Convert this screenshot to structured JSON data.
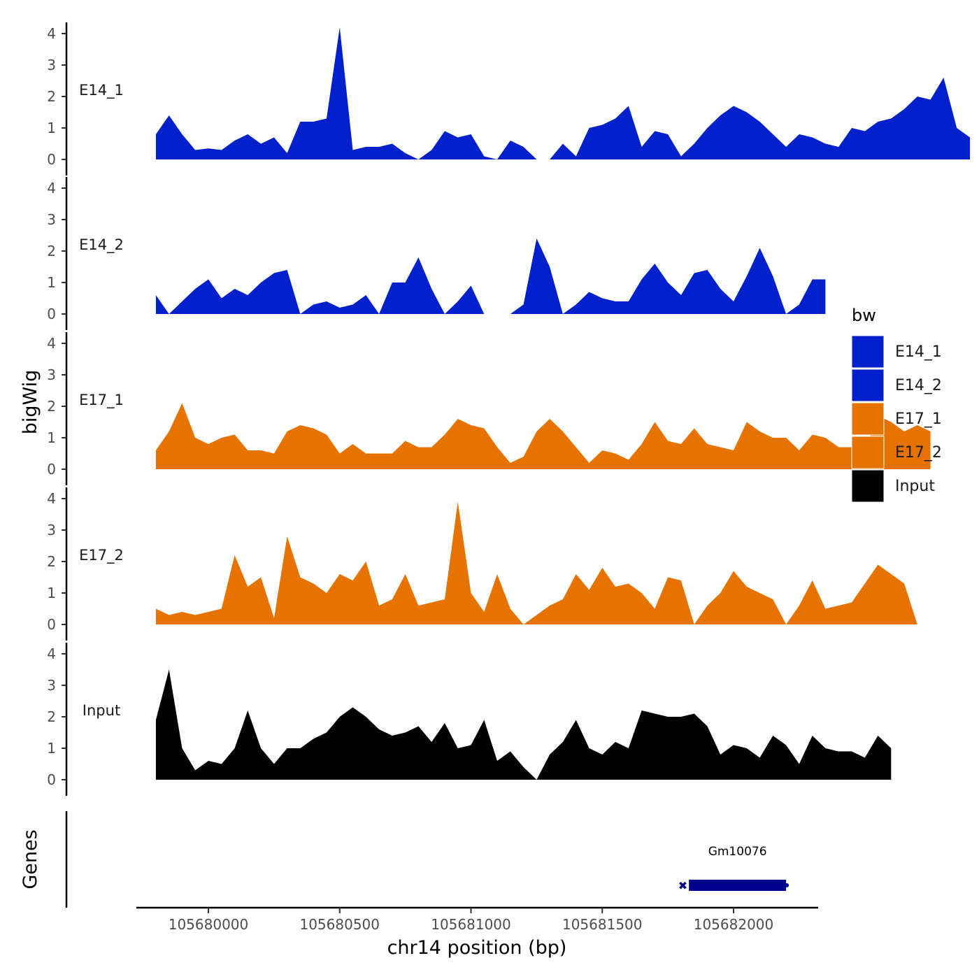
{
  "chart_data": {
    "type": "area",
    "title": "",
    "xlabel": "chr14 position (bp)",
    "ylabel": "bigWig",
    "xlim": [
      105679700,
      105682300
    ],
    "ylim": [
      0,
      4.3
    ],
    "x_ticks": [
      105680000,
      105680500,
      105681000,
      105681500,
      105682000
    ],
    "x_tick_labels": [
      "105680000",
      "105680500",
      "105681000",
      "105681500",
      "105682000"
    ],
    "y_ticks": [
      0,
      1,
      2,
      3,
      4
    ],
    "y_tick_labels": [
      "0",
      "1",
      "2",
      "3",
      "4"
    ],
    "x_start": 105679800,
    "x_step": 50,
    "legend": {
      "title": "bw",
      "position": "right",
      "entries": [
        {
          "label": "E14_1",
          "color": "#0020CC"
        },
        {
          "label": "E14_2",
          "color": "#0020CC"
        },
        {
          "label": "E17_1",
          "color": "#E67300"
        },
        {
          "label": "E17_2",
          "color": "#E67300"
        },
        {
          "label": "Input",
          "color": "#000000"
        }
      ]
    },
    "series": [
      {
        "name": "E14_1",
        "color": "#0020CC",
        "values": [
          0.8,
          1.4,
          0.8,
          0.3,
          0.35,
          0.3,
          0.6,
          0.8,
          0.5,
          0.7,
          0.2,
          1.2,
          1.2,
          1.3,
          4.2,
          0.3,
          0.4,
          0.4,
          0.5,
          0.2,
          0.0,
          0.3,
          0.9,
          0.7,
          0.8,
          0.1,
          0.0,
          0.6,
          0.4,
          0.0,
          0.0,
          0.5,
          0.1,
          1.0,
          1.1,
          1.3,
          1.7,
          0.4,
          0.9,
          0.8,
          0.1,
          0.5,
          1.0,
          1.4,
          1.7,
          1.5,
          1.2,
          0.8,
          0.4,
          0.8,
          0.7,
          0.5,
          0.4,
          1.0,
          0.9,
          1.2,
          1.3,
          1.6,
          2.0,
          1.9,
          2.6,
          1.0,
          0.7
        ]
      },
      {
        "name": "E14_2",
        "color": "#0020CC",
        "values": [
          0.6,
          0.0,
          0.4,
          0.8,
          1.1,
          0.5,
          0.8,
          0.6,
          1.0,
          1.3,
          1.4,
          0.0,
          0.3,
          0.4,
          0.2,
          0.3,
          0.6,
          0.0,
          1.0,
          1.0,
          1.8,
          0.8,
          0.0,
          0.4,
          0.9,
          0.0,
          0.0,
          0.0,
          0.3,
          2.4,
          1.5,
          0.0,
          0.3,
          0.7,
          0.5,
          0.4,
          0.4,
          1.1,
          1.6,
          1.0,
          0.6,
          1.3,
          1.4,
          0.8,
          0.4,
          1.2,
          2.1,
          1.2,
          0.0,
          0.3,
          1.1,
          1.1
        ]
      },
      {
        "name": "E17_1",
        "color": "#E67300",
        "values": [
          0.6,
          1.2,
          2.1,
          1.0,
          0.8,
          1.0,
          1.1,
          0.6,
          0.6,
          0.5,
          1.2,
          1.4,
          1.3,
          1.1,
          0.5,
          0.8,
          0.5,
          0.5,
          0.5,
          0.9,
          0.7,
          0.7,
          1.1,
          1.6,
          1.4,
          1.3,
          0.7,
          0.2,
          0.4,
          1.2,
          1.6,
          1.2,
          0.7,
          0.2,
          0.6,
          0.5,
          0.3,
          0.8,
          1.5,
          0.9,
          0.8,
          1.3,
          0.8,
          0.7,
          0.6,
          1.5,
          1.2,
          1.0,
          1.0,
          0.6,
          1.1,
          1.0,
          0.7,
          0.7,
          0.6,
          1.7,
          1.5,
          1.2,
          1.4,
          1.2
        ]
      },
      {
        "name": "E17_2",
        "color": "#E67300",
        "values": [
          0.5,
          0.3,
          0.4,
          0.3,
          0.4,
          0.5,
          2.2,
          1.2,
          1.5,
          0.2,
          2.8,
          1.5,
          1.3,
          1.0,
          1.6,
          1.4,
          2.0,
          0.6,
          0.8,
          1.6,
          0.6,
          0.7,
          0.8,
          3.9,
          1.0,
          0.4,
          1.6,
          0.5,
          0.0,
          0.3,
          0.6,
          0.8,
          1.6,
          1.1,
          1.8,
          1.2,
          1.3,
          1.0,
          0.5,
          1.5,
          1.4,
          0.0,
          0.6,
          1.0,
          1.7,
          1.2,
          1.0,
          0.8,
          0.0,
          0.6,
          1.4,
          0.5,
          0.6,
          0.7,
          1.3,
          1.9,
          1.6,
          1.3,
          0.0
        ]
      },
      {
        "name": "Input",
        "color": "#000000",
        "values": [
          1.9,
          3.5,
          1.0,
          0.3,
          0.6,
          0.5,
          1.0,
          2.2,
          1.0,
          0.5,
          1.0,
          1.0,
          1.3,
          1.5,
          2.0,
          2.3,
          2.0,
          1.6,
          1.4,
          1.5,
          1.7,
          1.2,
          1.8,
          1.0,
          1.1,
          1.9,
          0.6,
          0.9,
          0.4,
          0.0,
          0.8,
          1.2,
          1.9,
          1.0,
          0.8,
          1.2,
          1.0,
          2.2,
          2.1,
          2.0,
          2.0,
          2.1,
          1.7,
          0.8,
          1.1,
          1.0,
          0.7,
          1.4,
          1.1,
          0.5,
          1.4,
          1.0,
          0.9,
          0.9,
          0.7,
          1.4,
          1.0
        ]
      }
    ],
    "genes_track": {
      "label": "Genes",
      "genes": [
        {
          "name": "Gm10076",
          "start": 105681830,
          "end": 105682200,
          "strand": "-",
          "color": "#00008B"
        }
      ]
    }
  }
}
